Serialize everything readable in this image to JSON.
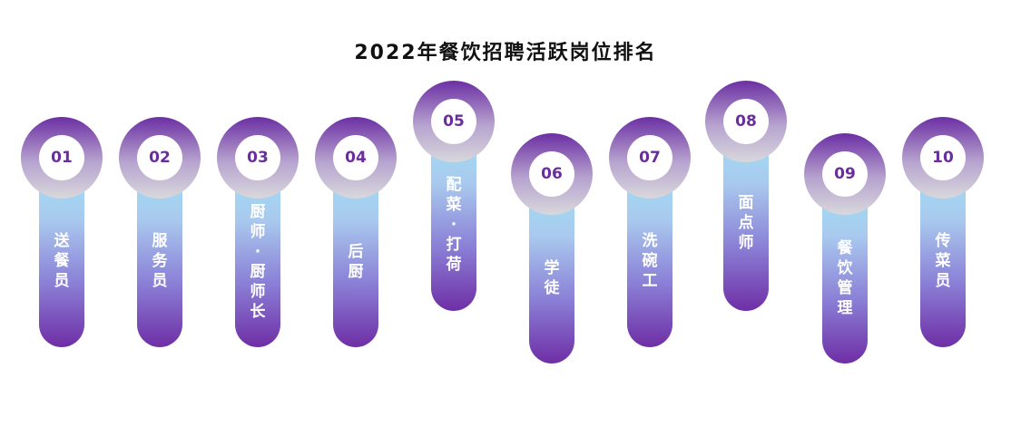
{
  "title": "2022年餐饮招聘活跃岗位排名",
  "colors": {
    "accent": "#6a2d9e",
    "pill_top": "#9fe0f4",
    "pill_bottom": "#6f2ea5",
    "ring_top": "#6b2fa3",
    "ring_bottom": "#d8d8dc"
  },
  "ranking": [
    {
      "rank": "01",
      "position": "送\n餐\n员"
    },
    {
      "rank": "02",
      "position": "服\n务\n员"
    },
    {
      "rank": "03",
      "position": "厨\n师\n·\n厨\n师\n长"
    },
    {
      "rank": "04",
      "position": "后\n厨"
    },
    {
      "rank": "05",
      "position": "配\n菜\n·\n打\n荷"
    },
    {
      "rank": "06",
      "position": "学\n徒"
    },
    {
      "rank": "07",
      "position": "洗\n碗\n工"
    },
    {
      "rank": "08",
      "position": "面\n点\n师"
    },
    {
      "rank": "09",
      "position": "餐\n饮\n管\n理"
    },
    {
      "rank": "10",
      "position": "传\n菜\n员"
    }
  ]
}
